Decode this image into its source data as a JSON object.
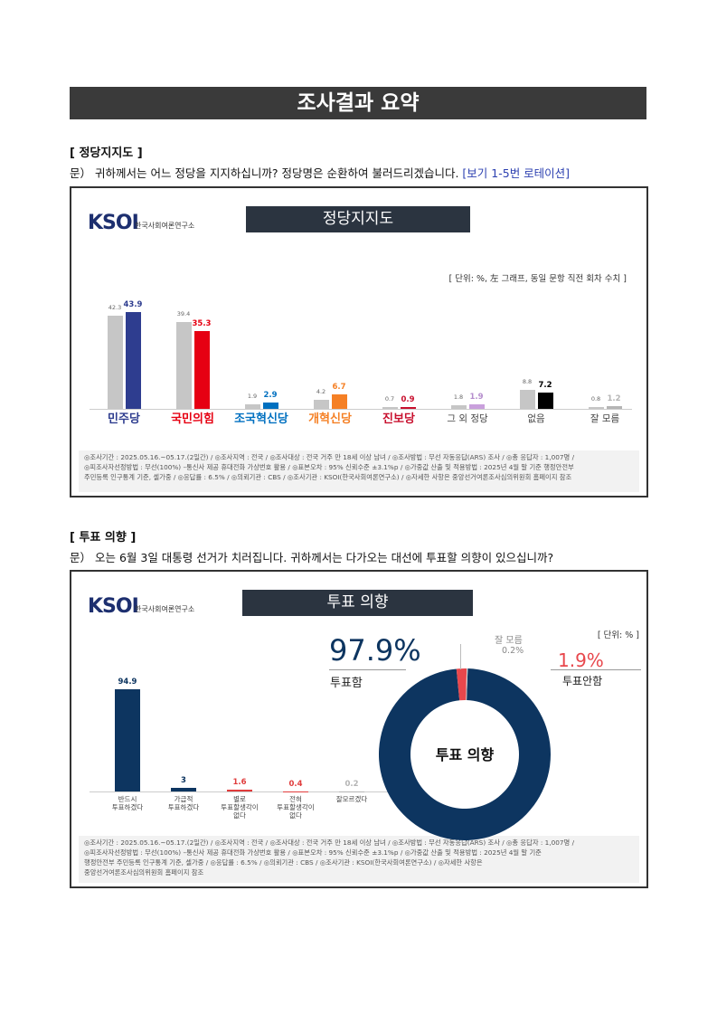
{
  "header": {
    "title": "조사결과 요약"
  },
  "sections": [
    {
      "heading": "[ 정당지지도 ]",
      "question": "문）  귀하께서는 어느 정당을 지지하십니까? 정당명은 순환하여 불러드리겠습니다.",
      "question_note": "[보기 1-5번 로테이션]"
    },
    {
      "heading": "[ 투표 의향 ]",
      "question": "문）  오는 6월 3일 대통령 선거가 치러집니다. 귀하께서는 다가오는 대선에 투표할 의향이 있으십니까?"
    }
  ],
  "chart_data": [
    {
      "type": "bar",
      "logo": "KSOI",
      "logo_sub": "한국사회여론연구소",
      "title": "정당지지도",
      "note": "[ 단위: %, 左 그래프, 동일 문항 직전 회차 수치 ]",
      "categories": [
        "민주당",
        "국민의힘",
        "조국혁신당",
        "개혁신당",
        "진보당",
        "그 외 정당",
        "없음",
        "잘 모름"
      ],
      "series": [
        {
          "color": "#c6c6c6",
          "values": [
            42.3,
            39.4,
            1.9,
            4.2,
            0.7,
            1.8,
            8.8,
            0.8
          ]
        },
        {
          "colors": [
            "#2e3d8f",
            "#e60012",
            "#0070c0",
            "#f58025",
            "#c8102e",
            "#c9a0dc",
            "#000000",
            "#b4b4b4"
          ],
          "values": [
            43.9,
            35.3,
            2.9,
            6.7,
            0.9,
            1.9,
            7.2,
            1.2
          ]
        }
      ],
      "footnote": [
        "◎조사기간 : 2025.05.16.~05.17.(2일간)  / ◎조사지역 : 전국 / ◎조사대상 : 전국 거주 만 18세 이상 남녀 / ◎조사방법 : 무선 자동응답(ARS) 조사 / ◎총 응답자 : 1,007명 /",
        "◎피조사자선정방법 : 무선(100%) –통신사 제공 휴대전화 가상번호 활용 / ◎표본오차 : 95% 신뢰수준 ±3.1%p / ◎가중값 산출 및 적용방법 : 2025년 4월 말 기준 행정안전부",
        "주민등록 인구통계 기준, 셀가중 / ◎응답률 : 6.5% / ◎의뢰기관 : CBS / ◎조사기관 : KSOI(한국사회여론연구소) / ◎자세한 사항은 중앙선거여론조사심의위원회 홈페이지 참조"
      ]
    },
    {
      "type": "bar",
      "logo": "KSOI",
      "logo_sub": "한국사회여론연구소",
      "title": "투표 의향",
      "note": "[ 단위: % ]",
      "categories": [
        "반드시\n투표하겠다",
        "가급적\n투표하겠다",
        "별로\n투표할생각이\n없다",
        "전혀\n투표할생각이\n없다",
        "잘모르겠다"
      ],
      "series": [
        {
          "colors": [
            "#0d3560",
            "#0d3560",
            "#e03c3c",
            "#e03c3c",
            "#b4b4b4"
          ],
          "values": [
            94.9,
            3.0,
            1.6,
            0.4,
            0.2
          ]
        }
      ],
      "footnote": [
        "◎조사기간 : 2025.05.16.~05.17.(2일간)  / ◎조사지역 : 전국 / ◎조사대상 : 전국 거주 만 18세 이상 남녀 / ◎조사방법 : 무선 자동응답(ARS) 조사 / ◎총 응답자 : 1,007명 /",
        "◎피조사자선정방법 : 무선(100%) –통신사 제공 휴대전화 가상번호 활용 / ◎표본오차 : 95% 신뢰수준 ±3.1%p / ◎가중값 산출 및 적용방법 : 2025년 4월 말 기준",
        "행정안전부 주민등록 인구통계 기준, 셀가중 / ◎응답률 : 6.5% / ◎의뢰기관 : CBS / ◎조사기관 : KSOI(한국사회여론연구소) / ◎자세한 사항은",
        "중앙선거여론조사심의위원회 홈페이지 참조"
      ]
    },
    {
      "type": "pie",
      "center_label": "투표 의향",
      "categories": [
        "투표함",
        "투표안함",
        "잘 모름"
      ],
      "values": [
        97.9,
        1.9,
        0.2
      ],
      "value_labels": [
        "97.9%",
        "1.9%",
        "0.2%"
      ],
      "colors": [
        "#0d3560",
        "#e8474c",
        "#d0d0d0"
      ]
    }
  ]
}
